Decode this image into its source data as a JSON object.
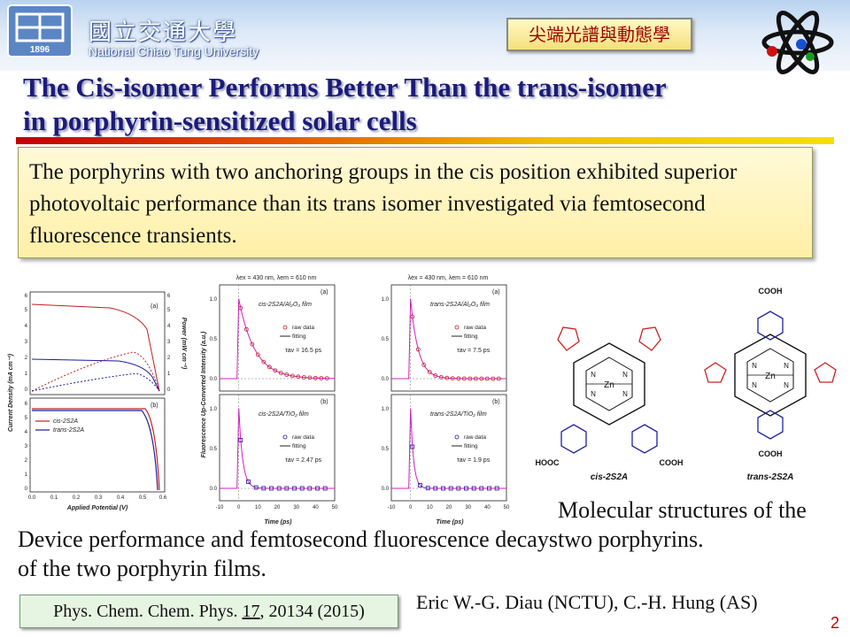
{
  "header": {
    "university_cn": "國立交通大學",
    "university_en": "National Chiao Tung University",
    "logo_year": "1896",
    "group_badge": "尖端光譜與動態學",
    "colors": {
      "title": "#1b1b7a",
      "rule_start": "#c00000",
      "rule_end": "#f5e000",
      "badge_text": "#a00000"
    }
  },
  "title": {
    "line1": "The Cis-isomer Performs Better Than the trans-isomer",
    "line2": "in porphyrin-sensitized solar cells"
  },
  "summary": "The porphyrins with two anchoring groups in the cis position exhibited superior photovoltaic performance than its trans isomer investigated via femtosecond fluorescence transients.",
  "figures": {
    "device": {
      "panel_a": "(a)",
      "panel_b": "(b)",
      "y_left_label": "Current Density (mA cm⁻²)",
      "y_right_label": "Power (mW cm⁻²)",
      "x_label": "Applied Potential (V)",
      "y_left_ticks_a": [
        "0",
        "1",
        "2",
        "3",
        "4",
        "5",
        "6"
      ],
      "y_right_ticks_a": [
        "0",
        "1",
        "2",
        "3",
        "4",
        "5",
        "6"
      ],
      "y_left_ticks_b": [
        "0",
        "1",
        "2",
        "3",
        "4",
        "5",
        "6"
      ],
      "x_ticks": [
        "0.0",
        "0.1",
        "0.2",
        "0.3",
        "0.4",
        "0.5",
        "0.6"
      ],
      "legend": [
        {
          "name": "cis-2S2A",
          "color": "#c02020"
        },
        {
          "name": "trans-2S2A",
          "color": "#1a1a9a"
        }
      ]
    },
    "fluorescence": {
      "excitation": "λex = 430 nm, λem = 610 nm",
      "y_label": "Fluorescence Up-Converted Intensity (a.u.)",
      "x_label": "Time (ps)",
      "x_ticks": [
        "-10",
        "0",
        "10",
        "20",
        "30",
        "40",
        "50"
      ],
      "y_ticks": [
        "0.0",
        "0.5",
        "1.0"
      ],
      "raw_label": "raw data",
      "fit_label": "fitting",
      "panels": [
        {
          "tag": "(a)",
          "sample": "cis-2S2A/Al₂O₃ film",
          "tau": "τav = 16.5 ps",
          "color": "#c02020"
        },
        {
          "tag": "(a)",
          "sample": "trans-2S2A/Al₂O₃ film",
          "tau": "τav = 7.5 ps",
          "color": "#c02020"
        },
        {
          "tag": "(b)",
          "sample": "cis-2S2A/TiO₂ film",
          "tau": "τav = 2.47 ps",
          "color": "#1a1a9a"
        },
        {
          "tag": "(b)",
          "sample": "trans-2S2A/TiO₂ film",
          "tau": "τav = 1.9 ps",
          "color": "#1a1a9a"
        }
      ]
    },
    "structures": {
      "cis_label": "cis-2S2A",
      "trans_label": "trans-2S2A",
      "cooh": "COOH",
      "hooc": "HOOC",
      "zn": "Zn",
      "n": "N"
    }
  },
  "captions": {
    "left": "Device performance and femtosecond fluorescence decays of the two porphyrin films.",
    "right": "Molecular structures of the two porphyrins."
  },
  "citation": {
    "journal": "Phys. Chem. Chem. Phys.",
    "volume": "17",
    "pages": ", 20134 (2015)"
  },
  "authors": "Eric W.-G. Diau (NCTU), C.-H. Hung (AS)",
  "page_number": "2"
}
